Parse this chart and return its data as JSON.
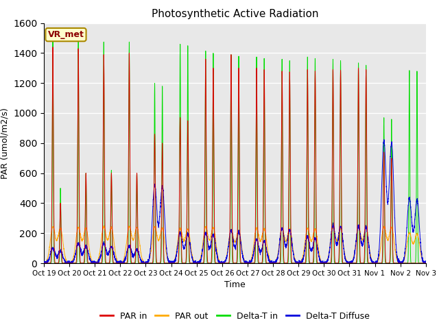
{
  "title": "Photosynthetic Active Radiation",
  "xlabel": "Time",
  "ylabel": "PAR (umol/m2/s)",
  "ylim": [
    0,
    1600
  ],
  "yticks": [
    0,
    200,
    400,
    600,
    800,
    1000,
    1200,
    1400,
    1600
  ],
  "x_labels": [
    "Oct 19",
    "Oct 20",
    "Oct 21",
    "Oct 22",
    "Oct 23",
    "Oct 24",
    "Oct 25",
    "Oct 26",
    "Oct 27",
    "Oct 28",
    "Oct 29",
    "Oct 30",
    "Oct 31",
    "Nov 1",
    "Nov 2",
    "Nov 3"
  ],
  "colors": {
    "PAR in": "#dd0000",
    "PAR out": "#ffaa00",
    "Delta-T in": "#00dd00",
    "Delta-T Diffuse": "#0000dd"
  },
  "legend_label_box": "VR_met",
  "legend_box_bg": "#ffffcc",
  "legend_box_border": "#aa8800",
  "plot_bg": "#e8e8e8",
  "n_days": 15,
  "peak_par_in": [
    1440,
    1430,
    1390,
    1400,
    860,
    970,
    1360,
    1390,
    1300,
    1280,
    1290,
    1290,
    1300,
    740,
    0
  ],
  "peak_par_out": [
    240,
    235,
    240,
    240,
    240,
    230,
    240,
    220,
    230,
    230,
    230,
    235,
    240,
    240,
    200
  ],
  "peak_delta_t_in": [
    1500,
    1495,
    1475,
    1475,
    1200,
    1460,
    1415,
    1390,
    1375,
    1360,
    1375,
    1360,
    1335,
    970,
    1285
  ],
  "peak_delta_t_diff": [
    100,
    130,
    130,
    115,
    520,
    200,
    200,
    215,
    155,
    230,
    175,
    250,
    245,
    810,
    430
  ],
  "par_in_secondary": [
    400,
    600,
    600,
    600,
    800,
    950,
    1300,
    1300,
    1290,
    1275,
    1280,
    1285,
    1290,
    700,
    0
  ],
  "par_out_secondary": [
    230,
    230,
    235,
    235,
    230,
    225,
    235,
    215,
    225,
    225,
    225,
    228,
    235,
    235,
    195
  ],
  "dtin_secondary": [
    500,
    600,
    620,
    600,
    1180,
    1450,
    1400,
    1380,
    1365,
    1350,
    1365,
    1350,
    1320,
    960,
    1280
  ],
  "dtdiff_secondary": [
    80,
    110,
    110,
    90,
    510,
    190,
    190,
    205,
    145,
    220,
    165,
    240,
    235,
    800,
    420
  ]
}
